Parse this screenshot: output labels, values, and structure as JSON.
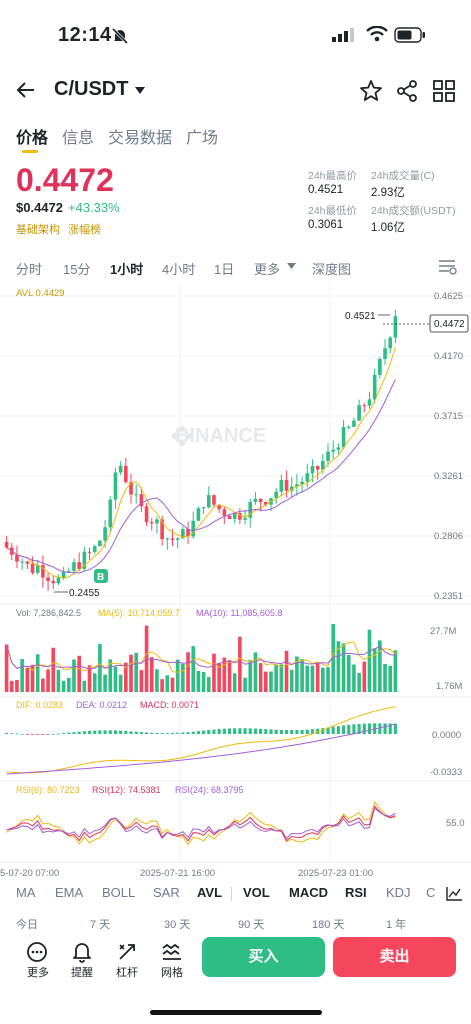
{
  "status": {
    "time": "12:14"
  },
  "header": {
    "pair": "C/USDT"
  },
  "tabs": [
    "价格",
    "信息",
    "交易数据",
    "广场"
  ],
  "price": {
    "last": "0.4472",
    "usd": "$0.4472",
    "change": "+43.33%",
    "tags": [
      "基础架构",
      "涨幅榜"
    ]
  },
  "stats": {
    "high_label": "24h最高价",
    "high": "0.4521",
    "vol_label": "24h成交量(C)",
    "vol": "2.93亿",
    "low_label": "24h最低价",
    "low": "0.3061",
    "turnover_label": "24h成交额(USDT)",
    "turnover": "1.06亿"
  },
  "intervals": [
    "分时",
    "15分",
    "1小时",
    "4小时",
    "1日",
    "更多",
    "深度图"
  ],
  "active_interval": "1小时",
  "chart": {
    "avl": "AVL 0.4429",
    "price_ticks": [
      "0.4625",
      "0.4170",
      "0.3715",
      "0.3261",
      "0.2806",
      "0.2351"
    ],
    "last_tag": "0.4472",
    "high_mark": "0.4521",
    "low_mark": "0.2455",
    "b_marker": "B",
    "watermark": "BINANCE",
    "vol_legend": {
      "vol": "Vol: 7,286,842.5",
      "ma5": "MA(5): 10,714,059.7",
      "ma10": "MA(10): 11,085,605.8"
    },
    "vol_ticks": [
      "27.7M",
      "1.76M"
    ],
    "macd_legend": {
      "dif": "DIF: 0.0283",
      "dea": "DEA: 0.0212",
      "macd": "MACD: 0.0071"
    },
    "macd_ticks": [
      "0.0000",
      "-0.0333"
    ],
    "rsi_legend": {
      "r6": "RSI(6): 80.7223",
      "r12": "RSI(12): 74.5381",
      "r24": "RSI(24): 68.3795"
    },
    "rsi_ticks": [
      "55.0"
    ],
    "dates": [
      "5-07-20 07:00",
      "2025-07-21 16:00",
      "2025-07-23 01:00"
    ],
    "colors": {
      "up": "#2ebd85",
      "down": "#f6465d",
      "ma5": "#f0b90b",
      "ma10": "#a35dd8"
    }
  },
  "chart_data": {
    "type": "candlestick",
    "ylim": [
      0.2351,
      0.4625
    ],
    "close_series": [
      0.272,
      0.268,
      0.262,
      0.255,
      0.258,
      0.252,
      0.248,
      0.246,
      0.255,
      0.26,
      0.265,
      0.27,
      0.28,
      0.3,
      0.34,
      0.325,
      0.31,
      0.3,
      0.295,
      0.29,
      0.28,
      0.278,
      0.28,
      0.285,
      0.295,
      0.31,
      0.305,
      0.3,
      0.298,
      0.296,
      0.3,
      0.305,
      0.308,
      0.31,
      0.315,
      0.32,
      0.318,
      0.322,
      0.325,
      0.33,
      0.338,
      0.345,
      0.355,
      0.36,
      0.37,
      0.38,
      0.39,
      0.41,
      0.43,
      0.4472
    ]
  },
  "indicators": [
    "MA",
    "EMA",
    "BOLL",
    "SAR",
    "AVL",
    "VOL",
    "MACD",
    "RSI",
    "KDJ",
    "C"
  ],
  "ranges": [
    "今日",
    "7 天",
    "30 天",
    "90 天",
    "180 天",
    "1 年"
  ],
  "bottom": {
    "more": "更多",
    "alert": "提醒",
    "leverage": "杠杆",
    "grid": "网格",
    "buy": "买入",
    "sell": "卖出"
  }
}
